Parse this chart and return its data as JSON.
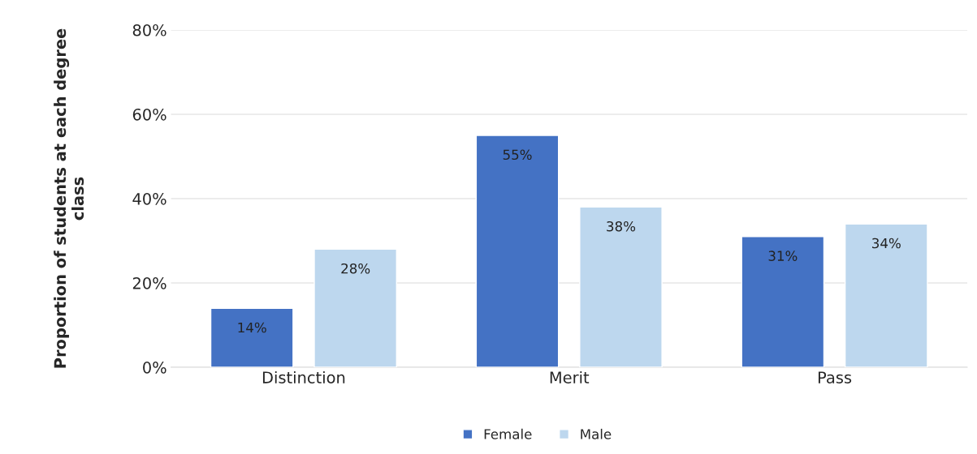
{
  "chart_data": {
    "type": "bar",
    "ylabel": "Proportion of students at each degree\nclass",
    "categories": [
      "Distinction",
      "Merit",
      "Pass"
    ],
    "series": [
      {
        "name": "Female",
        "color": "#4472c4",
        "values": [
          14,
          55,
          31
        ],
        "value_labels": [
          "14%",
          "55%",
          "31%"
        ]
      },
      {
        "name": "Male",
        "color": "#bdd7ee",
        "values": [
          28,
          38,
          34
        ],
        "value_labels": [
          "28%",
          "38%",
          "34%"
        ]
      }
    ],
    "ylim": [
      0,
      80
    ],
    "yticks": [
      {
        "value": 0,
        "label": "0%"
      },
      {
        "value": 20,
        "label": "20%"
      },
      {
        "value": 40,
        "label": "40%"
      },
      {
        "value": 60,
        "label": "60%"
      },
      {
        "value": 80,
        "label": "80%"
      }
    ],
    "grid": "y",
    "legend": "bottom"
  }
}
